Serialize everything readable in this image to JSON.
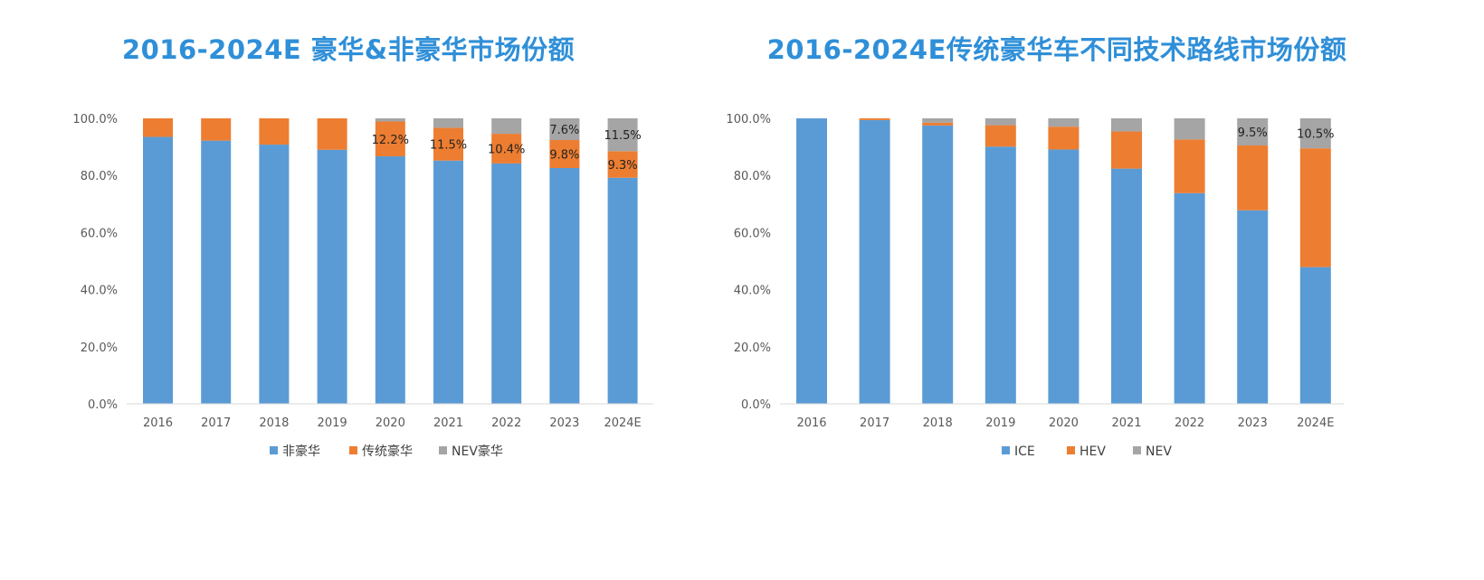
{
  "colors": {
    "title": "#2f8fd8",
    "blue": "#5b9bd5",
    "orange": "#ed7d31",
    "gray": "#a5a5a5",
    "axis": "#d9d9d9"
  },
  "chart_data": [
    {
      "type": "bar",
      "stacked": true,
      "title": "2016-2024E  豪华&非豪华市场份额",
      "categories": [
        "2016",
        "2017",
        "2018",
        "2019",
        "2020",
        "2021",
        "2022",
        "2023",
        "2024E"
      ],
      "ylim": [
        0,
        100
      ],
      "yticks": [
        "0.0%",
        "20.0%",
        "40.0%",
        "60.0%",
        "80.0%",
        "100.0%"
      ],
      "grid": false,
      "legend": "bottom",
      "series": [
        {
          "name": "非豪华",
          "color": "#5b9bd5",
          "values": [
            93.5,
            92.2,
            90.8,
            89.0,
            86.7,
            85.2,
            84.2,
            82.6,
            79.2
          ]
        },
        {
          "name": "传统豪华",
          "color": "#ed7d31",
          "values": [
            6.5,
            7.8,
            9.2,
            11.0,
            12.2,
            11.5,
            10.4,
            9.8,
            9.3
          ]
        },
        {
          "name": "NEV豪华",
          "color": "#a5a5a5",
          "values": [
            0,
            0,
            0,
            0,
            1.1,
            3.3,
            5.4,
            7.6,
            11.5
          ]
        }
      ],
      "data_labels": [
        {
          "series": 1,
          "index": 4,
          "text": "12.2%"
        },
        {
          "series": 1,
          "index": 5,
          "text": "11.5%"
        },
        {
          "series": 1,
          "index": 6,
          "text": "10.4%"
        },
        {
          "series": 1,
          "index": 7,
          "text": "9.8%"
        },
        {
          "series": 2,
          "index": 7,
          "text": "7.6%"
        },
        {
          "series": 1,
          "index": 8,
          "text": "9.3%"
        },
        {
          "series": 2,
          "index": 8,
          "text": "11.5%"
        }
      ]
    },
    {
      "type": "bar",
      "stacked": true,
      "title": "2016-2024E传统豪华车不同技术路线市场份额",
      "categories": [
        "2016",
        "2017",
        "2018",
        "2019",
        "2020",
        "2021",
        "2022",
        "2023",
        "2024E"
      ],
      "ylim": [
        0,
        100
      ],
      "yticks": [
        "0.0%",
        "20.0%",
        "40.0%",
        "60.0%",
        "80.0%",
        "100.0%"
      ],
      "grid": false,
      "legend": "bottom",
      "series": [
        {
          "name": "ICE",
          "color": "#5b9bd5",
          "values": [
            100,
            99.4,
            97.5,
            90.1,
            89.1,
            82.4,
            73.8,
            67.8,
            47.9
          ]
        },
        {
          "name": "HEV",
          "color": "#ed7d31",
          "values": [
            0,
            0.6,
            1.0,
            7.5,
            8.0,
            13.0,
            18.8,
            22.7,
            41.6
          ]
        },
        {
          "name": "NEV",
          "color": "#a5a5a5",
          "values": [
            0,
            0,
            1.5,
            2.4,
            2.9,
            4.6,
            7.4,
            9.5,
            10.5
          ]
        }
      ],
      "data_labels": [
        {
          "series": 2,
          "index": 7,
          "text": "9.5%"
        },
        {
          "series": 2,
          "index": 8,
          "text": "10.5%"
        }
      ]
    }
  ]
}
